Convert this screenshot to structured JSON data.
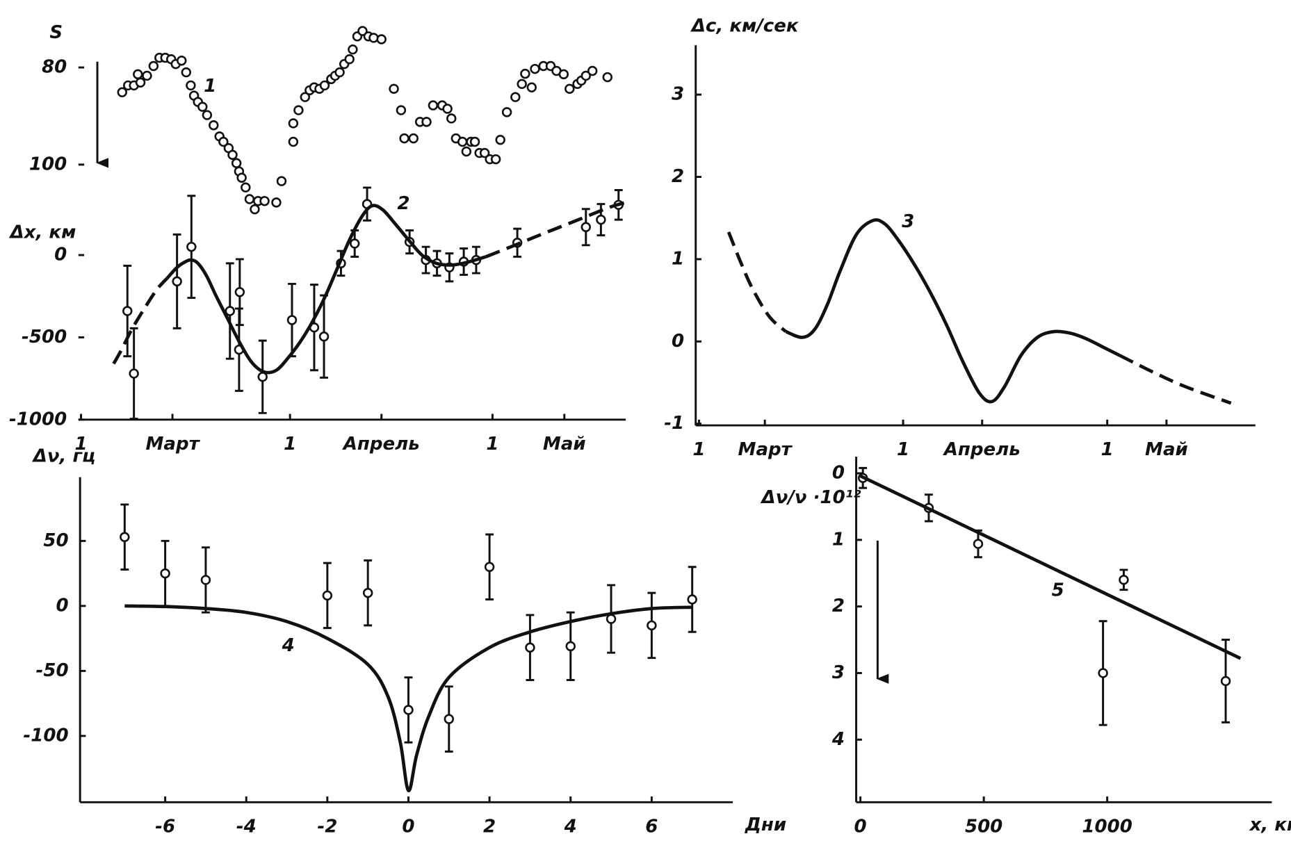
{
  "chart_data": [
    {
      "type": "scatter",
      "ylabel": "Δx, км",
      "y2label": "S",
      "xlim": [
        -32.4,
        51.4
      ],
      "ylim": [
        -1000,
        1450
      ],
      "y2lim": [
        152.5,
        69.5
      ],
      "xticks": [
        {
          "value": -32,
          "label": "1"
        },
        {
          "value": -18,
          "label": "Март"
        },
        {
          "value": 0,
          "label": "1"
        },
        {
          "value": 14,
          "label": "Апрель"
        },
        {
          "value": 31,
          "label": "1"
        },
        {
          "value": 42,
          "label": "Май"
        }
      ],
      "yticks": [
        0,
        -500,
        -1000
      ],
      "y2ticks": [
        80,
        100
      ],
      "annotations": [
        "1",
        "2"
      ],
      "series": [
        {
          "kind": "points",
          "axis": "y2",
          "color": "#111",
          "x": [
            -25.7,
            -24.8,
            -23.9,
            -23.3,
            -22.9,
            -21.9,
            -20.9,
            -20.0,
            -19.1,
            -18.2,
            -17.5,
            -16.6,
            -15.9,
            -15.2,
            -14.7,
            -14.1,
            -13.4,
            -12.7,
            -11.7,
            -10.8,
            -10.2,
            -9.4,
            -8.8,
            -8.2,
            -7.8,
            -7.4,
            -6.8,
            -6.2,
            -5.4,
            -4.9,
            -3.9,
            -2.1,
            -1.3,
            0.5,
            0.5,
            1.3,
            2.3,
            3.0,
            3.7,
            4.5,
            5.3,
            6.3,
            6.9,
            7.6,
            8.3,
            9.1,
            9.6,
            10.3,
            11.1,
            12.0,
            12.8,
            14.0,
            15.9,
            17.0,
            17.5,
            18.9,
            19.9,
            20.9,
            21.9,
            23.3,
            24.1,
            24.7,
            25.4,
            26.4,
            27.0,
            27.7,
            28.3,
            29.0,
            29.8,
            30.6,
            31.5,
            32.2,
            33.2,
            34.5,
            35.5,
            36.0,
            37.0,
            37.5,
            38.8,
            39.9,
            40.8,
            41.9,
            42.8,
            44.0,
            44.6,
            45.3,
            46.3,
            48.6
          ],
          "values": [
            85.1,
            83.7,
            83.7,
            81.4,
            83.1,
            81.7,
            79.7,
            78.0,
            78.0,
            78.3,
            79.3,
            78.6,
            81.0,
            83.7,
            85.8,
            87.1,
            88.1,
            89.8,
            91.9,
            94.2,
            95.3,
            96.6,
            98.0,
            99.7,
            101.4,
            102.7,
            104.7,
            107.1,
            109.2,
            107.5,
            107.5,
            107.8,
            103.4,
            95.3,
            91.5,
            88.8,
            86.1,
            84.7,
            84.1,
            84.4,
            83.7,
            82.4,
            81.7,
            81.0,
            79.3,
            78.3,
            76.3,
            73.6,
            72.5,
            73.6,
            73.9,
            74.2,
            84.4,
            88.8,
            94.6,
            94.6,
            91.2,
            91.2,
            87.8,
            87.8,
            88.5,
            90.5,
            94.6,
            95.3,
            97.3,
            95.3,
            95.3,
            97.6,
            97.6,
            98.9,
            98.9,
            94.9,
            89.2,
            86.1,
            83.4,
            81.3,
            84.1,
            80.3,
            79.7,
            79.7,
            80.7,
            81.4,
            84.4,
            83.4,
            82.7,
            81.7,
            80.7,
            82.0
          ]
        },
        {
          "kind": "points",
          "color": "#111",
          "x": [
            -24.9,
            -23.9,
            -17.3,
            -15.1,
            -9.2,
            -7.8,
            -7.7,
            -4.2,
            0.3,
            3.7,
            5.2,
            7.8,
            9.9,
            11.8,
            18.3,
            20.8,
            22.5,
            24.4,
            26.6,
            28.5,
            34.8,
            45.3,
            47.6,
            50.3
          ],
          "values": [
            -340,
            -720,
            -160,
            50,
            -340,
            -575,
            -225,
            -740,
            -395,
            -440,
            -495,
            -50,
            70,
            310,
            80,
            -30,
            -50,
            -75,
            -40,
            -30,
            75,
            170,
            215,
            305
          ],
          "errors": [
            275,
            275,
            285,
            310,
            290,
            250,
            200,
            220,
            220,
            260,
            250,
            75,
            80,
            100,
            70,
            80,
            75,
            85,
            80,
            80,
            85,
            110,
            95,
            90
          ]
        },
        {
          "kind": "line",
          "style": "dashed",
          "color": "#111",
          "x": [
            -27.0,
            -25.8,
            -24.2,
            -22.3,
            -20.4,
            -18.8
          ],
          "values": [
            -660,
            -575,
            -450,
            -325,
            -210,
            -140
          ]
        },
        {
          "kind": "line",
          "style": "solid",
          "color": "#111",
          "x": [
            -18.8,
            -17.3,
            -16.0,
            -15.1,
            -14.1,
            -12.8,
            -11.3,
            -9.7,
            -7.8,
            -5.9,
            -4.0,
            -2.1,
            -0.3,
            1.6,
            3.5,
            5.4,
            7.3,
            9.2,
            11.1,
            12.6,
            14.2,
            16.1,
            18.3,
            20.2,
            22.4,
            24.9,
            27.5,
            30.0
          ],
          "values": [
            -140,
            -75,
            -40,
            -30,
            -50,
            -125,
            -250,
            -375,
            -525,
            -650,
            -710,
            -700,
            -625,
            -525,
            -400,
            -250,
            -75,
            100,
            240,
            300,
            275,
            190,
            85,
            0,
            -50,
            -60,
            -40,
            -10
          ]
        },
        {
          "kind": "line",
          "style": "dashed",
          "color": "#111",
          "x": [
            30.0,
            33.8,
            37.5,
            41.3,
            45.1,
            48.9,
            51.4
          ],
          "values": [
            -10,
            50,
            110,
            170,
            230,
            290,
            320
          ]
        }
      ]
    },
    {
      "type": "line",
      "ylabel": "Δc, км/сек",
      "xlim": [
        -31.5,
        53.5
      ],
      "ylim": [
        -1.02,
        3.6
      ],
      "xticks": [
        {
          "value": -31,
          "label": "1"
        },
        {
          "value": -21,
          "label": "Март"
        },
        {
          "value": 0,
          "label": "1"
        },
        {
          "value": 12,
          "label": "Апрель"
        },
        {
          "value": 31,
          "label": "1"
        },
        {
          "value": 40,
          "label": "Май"
        }
      ],
      "yticks": [
        -1,
        0,
        1,
        2,
        3
      ],
      "annotations": [
        "3"
      ],
      "series": [
        {
          "kind": "line",
          "style": "dashed",
          "color": "#111",
          "x": [
            -26.5,
            -24.6,
            -22.8,
            -20.3,
            -17.8
          ],
          "values": [
            1.33,
            0.95,
            0.63,
            0.3,
            0.12
          ]
        },
        {
          "kind": "line",
          "style": "solid",
          "color": "#111",
          "x": [
            -17.8,
            -15.3,
            -13.4,
            -11.5,
            -9.6,
            -7.1,
            -4.6,
            -2.8,
            -0.9,
            1.6,
            4.1,
            6.6,
            9.1,
            11.6,
            13.5,
            15.4,
            17.9,
            20.4,
            22.9,
            25.4,
            27.9,
            30.4,
            32.9
          ],
          "values": [
            0.12,
            0.05,
            0.15,
            0.45,
            0.85,
            1.3,
            1.47,
            1.43,
            1.25,
            0.95,
            0.6,
            0.2,
            -0.25,
            -0.63,
            -0.73,
            -0.55,
            -0.17,
            0.05,
            0.12,
            0.1,
            0.03,
            -0.07,
            -0.17
          ]
        },
        {
          "kind": "line",
          "style": "dashed",
          "color": "#111",
          "x": [
            32.9,
            37.9,
            42.9,
            49.8
          ],
          "values": [
            -0.17,
            -0.37,
            -0.55,
            -0.75
          ]
        }
      ]
    },
    {
      "type": "scatter",
      "ylabel": "Δν, гц",
      "xlabel": "Дни",
      "xlim": [
        -8.1,
        8.0
      ],
      "ylim": [
        -151,
        99
      ],
      "xticks": [
        -6,
        -4,
        -2,
        0,
        2,
        4,
        6
      ],
      "yticks": [
        50,
        0,
        -50,
        -100
      ],
      "annotations": [
        "4"
      ],
      "series": [
        {
          "kind": "points",
          "color": "#111",
          "x": [
            -7,
            -6,
            -5,
            -2,
            -1,
            0,
            1,
            2,
            3,
            4,
            5,
            6,
            7
          ],
          "values": [
            53,
            25,
            20,
            8,
            10,
            -80,
            -87,
            30,
            -32,
            -31,
            -10,
            -15,
            5
          ],
          "errors": [
            25,
            25,
            25,
            25,
            25,
            25,
            25,
            25,
            25,
            26,
            26,
            25,
            25
          ]
        },
        {
          "kind": "line",
          "style": "solid",
          "color": "#111",
          "x": [
            -7,
            -6,
            -5,
            -4,
            -3,
            -2,
            -1,
            -0.5,
            -0.2,
            0,
            0.2,
            0.5,
            1,
            2,
            3,
            4,
            5,
            6,
            7
          ],
          "values": [
            0,
            -0.5,
            -2,
            -5,
            -12,
            -25,
            -45,
            -70,
            -105,
            -142,
            -115,
            -85,
            -55,
            -32,
            -20,
            -12,
            -6,
            -2,
            -1
          ]
        }
      ]
    },
    {
      "type": "scatter",
      "ylabel": "Δν/ν ·10¹²",
      "xlabel": "x, км",
      "xlim": [
        -17,
        1667
      ],
      "ylim": [
        4.94,
        -0.25
      ],
      "xticks": [
        0,
        500,
        1000
      ],
      "yticks": [
        0,
        1,
        2,
        3,
        4
      ],
      "annotations": [
        "5"
      ],
      "series": [
        {
          "kind": "points",
          "color": "#111",
          "x": [
            10,
            277,
            477,
            1067,
            983,
            1480
          ],
          "values": [
            0.07,
            0.52,
            1.06,
            1.6,
            3.0,
            3.12
          ],
          "errors": [
            0.15,
            0.2,
            0.2,
            0.15,
            0.78,
            0.62
          ]
        },
        {
          "kind": "line",
          "style": "solid",
          "color": "#111",
          "x": [
            0,
            1540
          ],
          "values": [
            0.04,
            2.78
          ]
        }
      ]
    }
  ]
}
